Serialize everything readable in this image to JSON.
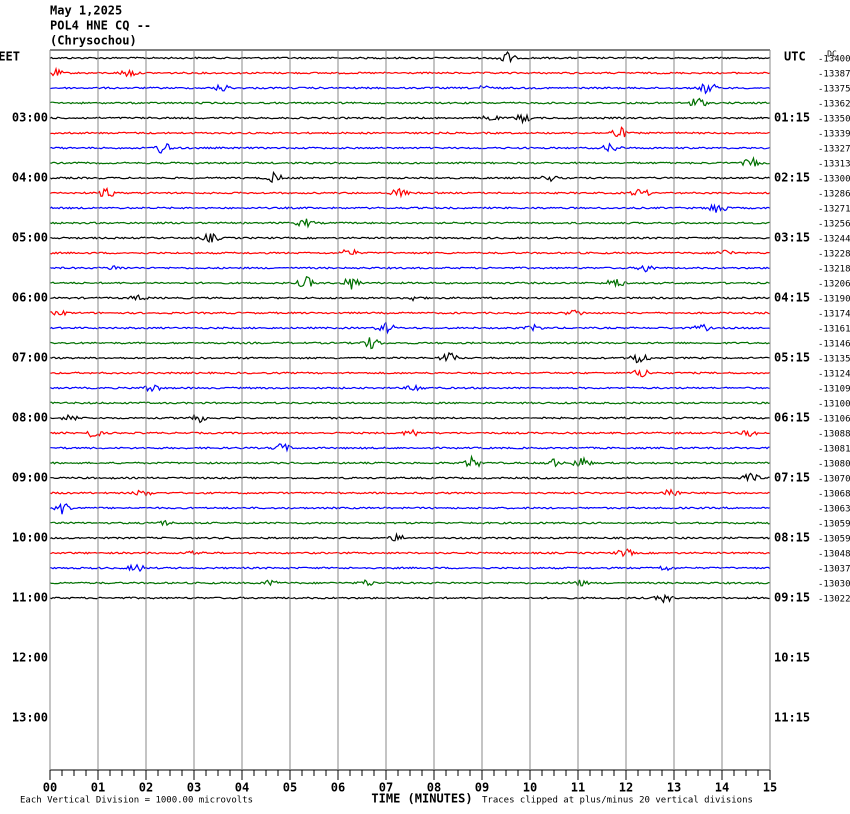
{
  "header": {
    "date": "May 1,2025",
    "station": "POL4 HNE CQ --",
    "location": "(Chrysochou)"
  },
  "left_axis": {
    "title": "EET",
    "labels": [
      "03:00",
      "04:00",
      "05:00",
      "06:00",
      "07:00",
      "08:00",
      "09:00",
      "10:00",
      "11:00",
      "12:00",
      "13:00"
    ]
  },
  "right_axis": {
    "title": "UTC",
    "labels": [
      "01:15",
      "02:15",
      "03:15",
      "04:15",
      "05:15",
      "06:15",
      "07:15",
      "08:15",
      "09:15",
      "10:15",
      "11:15"
    ]
  },
  "dc_title": "DC",
  "traces": {
    "colors": [
      "#000000",
      "#ff0000",
      "#0000ff",
      "#007000"
    ],
    "offsets": [
      -13400,
      -13387,
      -13375,
      -13362,
      -13350,
      -13339,
      -13327,
      -13313,
      -13300,
      -13286,
      -13271,
      -13256,
      -13244,
      -13228,
      -13218,
      -13206,
      -13190,
      -13174,
      -13161,
      -13146,
      -13135,
      -13124,
      -13109,
      -13100,
      -13106,
      -13088,
      -13081,
      -13080,
      -13070,
      -13068,
      -13063,
      -13059,
      -13059,
      -13048,
      -13037,
      -13030,
      -13022
    ]
  },
  "x_axis": {
    "title": "TIME (MINUTES)",
    "labels": [
      "00",
      "01",
      "02",
      "03",
      "04",
      "05",
      "06",
      "07",
      "08",
      "09",
      "10",
      "11",
      "12",
      "13",
      "14",
      "15"
    ]
  },
  "footer": {
    "scale": "Each Vertical Division = 1000.00 microvolts",
    "clip": "Traces clipped at plus/minus 20 vertical divisions"
  }
}
